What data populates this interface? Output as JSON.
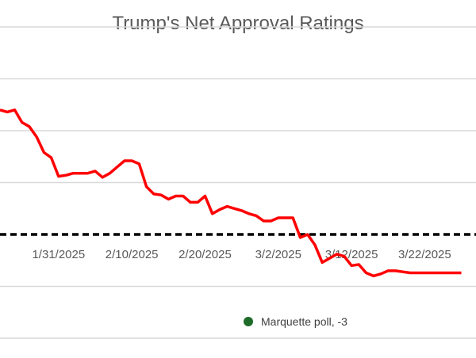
{
  "chart_data": {
    "type": "line",
    "title": "Trump's Net Approval Ratings",
    "xlabel": "",
    "ylabel": "",
    "ylim": [
      -10,
      20
    ],
    "grid": true,
    "x_start": "2025-01-23",
    "x_tick_labels": [
      "1/31/2025",
      "2/10/2025",
      "2/20/2025",
      "3/2/2025",
      "3/12/2025",
      "3/22/2025"
    ],
    "x_tick_dates": [
      "2025-01-31",
      "2025-02-10",
      "2025-02-20",
      "2025-03-02",
      "2025-03-12",
      "2025-03-22"
    ],
    "series": [
      {
        "name": "",
        "color": "#FF0000",
        "x": [
          "2025-01-23",
          "2025-01-24",
          "2025-01-25",
          "2025-01-26",
          "2025-01-27",
          "2025-01-28",
          "2025-01-29",
          "2025-01-30",
          "2025-01-31",
          "2025-02-01",
          "2025-02-02",
          "2025-02-03",
          "2025-02-04",
          "2025-02-05",
          "2025-02-06",
          "2025-02-07",
          "2025-02-08",
          "2025-02-09",
          "2025-02-10",
          "2025-02-11",
          "2025-02-12",
          "2025-02-13",
          "2025-02-14",
          "2025-02-15",
          "2025-02-16",
          "2025-02-17",
          "2025-02-18",
          "2025-02-19",
          "2025-02-20",
          "2025-02-21",
          "2025-02-22",
          "2025-02-23",
          "2025-02-24",
          "2025-02-25",
          "2025-02-26",
          "2025-02-27",
          "2025-02-28",
          "2025-03-01",
          "2025-03-02",
          "2025-03-03",
          "2025-03-04",
          "2025-03-05",
          "2025-03-06",
          "2025-03-07",
          "2025-03-08",
          "2025-03-09",
          "2025-03-10",
          "2025-03-11",
          "2025-03-12",
          "2025-03-13",
          "2025-03-14",
          "2025-03-15",
          "2025-03-16",
          "2025-03-17",
          "2025-03-18",
          "2025-03-19",
          "2025-03-20",
          "2025-03-21",
          "2025-03-22",
          "2025-03-23",
          "2025-03-24",
          "2025-03-25",
          "2025-03-26",
          "2025-03-27"
        ],
        "values": [
          12,
          11.8,
          12,
          10.8,
          10.4,
          9.4,
          7.9,
          7.4,
          5.6,
          5.7,
          5.9,
          5.9,
          5.9,
          6.1,
          5.5,
          5.9,
          6.5,
          7.1,
          7.1,
          6.8,
          4.6,
          3.9,
          3.8,
          3.4,
          3.7,
          3.7,
          3.1,
          3.1,
          3.7,
          2.0,
          2.4,
          2.7,
          2.5,
          2.3,
          2.0,
          1.8,
          1.3,
          1.3,
          1.6,
          1.6,
          1.6,
          -0.3,
          0.0,
          -1.0,
          -2.7,
          -2.3,
          -1.9,
          -2.1,
          -3.0,
          -2.9,
          -3.7,
          -4.0,
          -3.8,
          -3.5,
          -3.5,
          -3.6,
          -3.7,
          -3.7,
          -3.7,
          -3.7,
          -3.7,
          -3.7,
          -3.7,
          -3.7
        ]
      }
    ],
    "reference_line": {
      "y": 0,
      "style": "dashed",
      "color": "#000000"
    },
    "legend": {
      "entries": [
        {
          "label": "Marquette poll, -3",
          "color": "#1E6B2A",
          "marker": "circle"
        }
      ],
      "position": "bottom"
    }
  }
}
